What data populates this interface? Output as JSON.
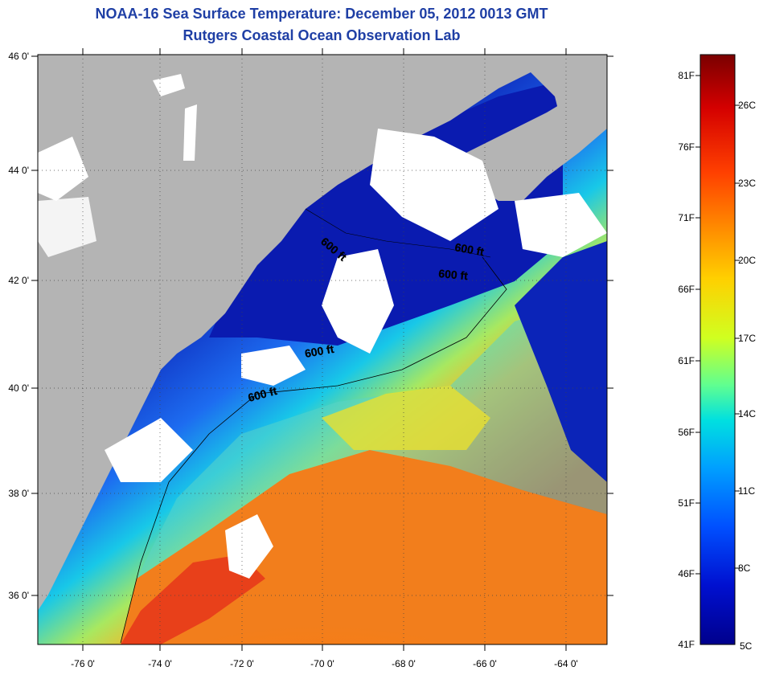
{
  "header": {
    "title_line1": "NOAA-16 Sea Surface Temperature:  December 05, 2012 0013 GMT",
    "title_line2": "Rutgers Coastal Ocean Observation Lab"
  },
  "map": {
    "lon_labels": [
      "-76 0'",
      "-74 0'",
      "-72 0'",
      "-70 0'",
      "-68 0'",
      "-66 0'",
      "-64 0'"
    ],
    "lat_labels": [
      "46 0'",
      "44 0'",
      "42 0'",
      "40 0'",
      "38 0'",
      "36 0'"
    ],
    "contour_labels": [
      "600 ft",
      "600 ft",
      "600 ft",
      "600 ft",
      "600 ft"
    ],
    "colors": {
      "land": "#b4b4b4",
      "cloud": "#ffffff",
      "cold": "#0a1bb0",
      "warm": "#f07a1a"
    }
  },
  "colorbar": {
    "fahrenheit_labels": [
      "81F",
      "76F",
      "71F",
      "66F",
      "61F",
      "56F",
      "51F",
      "46F",
      "41F"
    ],
    "celsius_labels": [
      "26C",
      "23C",
      "20C",
      "17C",
      "14C",
      "11C",
      "8C",
      "5C"
    ],
    "gradient_colors": [
      "#7a0000",
      "#d40000",
      "#ff4000",
      "#ff9000",
      "#ffd000",
      "#d0ff20",
      "#60ff90",
      "#00e0e0",
      "#00a0ff",
      "#0050ff",
      "#0010d0",
      "#00008c"
    ]
  }
}
